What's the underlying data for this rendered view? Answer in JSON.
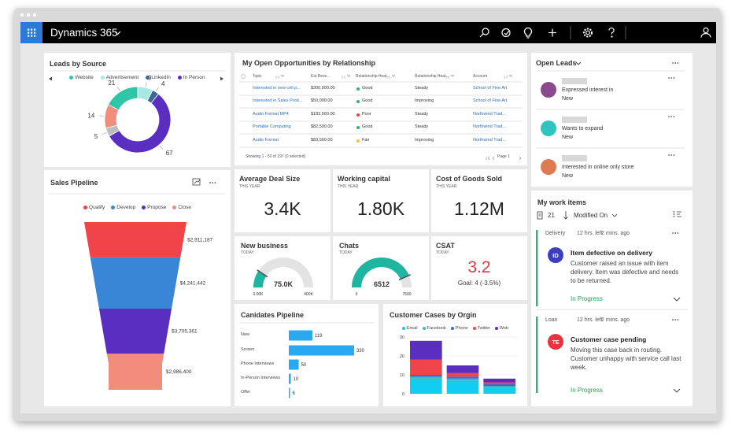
{
  "app": {
    "title": "Dynamics 365"
  },
  "leads_by_source": {
    "type": "donut",
    "title": "Leads by Source",
    "categories": [
      "Website",
      "Advertisement",
      "LinkedIn",
      "In Person",
      null,
      null
    ],
    "values": [
      21,
      9,
      4,
      67,
      5,
      14
    ],
    "colors": [
      "#2fc6a8",
      "#a9e7e1",
      "#3d6690",
      "#5a2ec0",
      "#bdbdbd",
      "#f28c7c"
    ]
  },
  "sales_pipeline": {
    "type": "funnel",
    "title": "Sales Pipeline",
    "categories": [
      "Qualify",
      "Develop",
      "Propose",
      "Close"
    ],
    "values": [
      2911187,
      4241442,
      3705361,
      2986400
    ],
    "value_labels": [
      "$2,911,187",
      "$4,241,442",
      "$3,705,361",
      "$2,986,400"
    ],
    "colors": [
      "#f0434a",
      "#3a86d6",
      "#5a2ec0",
      "#f28c7c"
    ]
  },
  "opportunities": {
    "title": "My Open Opportunities by Relationship",
    "columns": [
      "Topic",
      "Est Reve...",
      "Relationship Heal...",
      "Relationship Heal...",
      "Account"
    ],
    "rows": [
      [
        "Interested in new cell p...",
        "$300,000.00",
        "Good",
        "Steady",
        "School of Fine Art"
      ],
      [
        "Interested in Sales Prod...",
        "$50,000.00",
        "Good",
        "Improving",
        "School of Fine Art"
      ],
      [
        "Audio Format MP4",
        "$183,560.00",
        "Poor",
        "Steady",
        "Northwind Trad..."
      ],
      [
        "Portable Computing",
        "$82,500.00",
        "Good",
        "Steady",
        "Northwind Trad..."
      ],
      [
        "Audio Format",
        "$83,560.00",
        "Fair",
        "Improving",
        "Northwind Trad..."
      ]
    ],
    "health_colors": [
      "#2bb673",
      "#2bb673",
      "#e8434a",
      "#2bb673",
      "#f2c12e"
    ],
    "footer": "Showing 1 - 50 of 197 (0 selected)",
    "page": "Page 1"
  },
  "kpis": [
    {
      "title": "Average Deal Size",
      "period": "THIS YEAR",
      "value": "3.4K"
    },
    {
      "title": "Working capital",
      "period": "THIS YEAR",
      "value": "1.80K"
    },
    {
      "title": "Cost of Goods Sold",
      "period": "THIS YEAR",
      "value": "1.12M"
    }
  ],
  "gauges": [
    {
      "type": "gauge",
      "title": "New business",
      "period": "TODAY",
      "value": 75000,
      "value_label": "75.0K",
      "min": {
        "value": 0,
        "label": "0.00K"
      },
      "max": {
        "value": 400000,
        "label": "400K"
      },
      "color": "#1fb5a0"
    },
    {
      "type": "gauge",
      "title": "Chats",
      "period": "TODAY",
      "value": 6512,
      "min": 0,
      "max": 7500,
      "color": "#1fb5a0"
    }
  ],
  "csat": {
    "title": "CSAT",
    "period": "TODAY",
    "value": "3.2",
    "goal": "Goal: 4 (-3.5%)"
  },
  "candidates": {
    "type": "bar",
    "orientation": "horizontal",
    "title": "Canidates Pipeline",
    "categories": [
      "New",
      "Screen",
      "Phone Interviews",
      "In-Person Interviews",
      "Offer"
    ],
    "values": [
      119,
      330,
      50,
      10,
      6
    ],
    "xlim": [
      0,
      350
    ],
    "color": "#29a9f0"
  },
  "customer_cases": {
    "type": "stacked_bar",
    "title": "Customer Cases by Orgin",
    "categories": [
      null,
      null,
      null
    ],
    "series": [
      {
        "name": "Email",
        "color": "#12cdf2",
        "values": [
          8,
          7,
          3
        ]
      },
      {
        "name": "Facebook",
        "color": "#3fb9b0",
        "values": [
          1,
          1,
          1
        ]
      },
      {
        "name": "Phone",
        "color": "#2f6fd6",
        "values": [
          1,
          1,
          1
        ]
      },
      {
        "name": "Twitter",
        "color": "#f0434a",
        "values": [
          8,
          2,
          1
        ]
      },
      {
        "name": "Web",
        "color": "#5a2ec0",
        "values": [
          10,
          4,
          2
        ]
      }
    ],
    "ylim": [
      0,
      30
    ],
    "yticks": [
      0,
      10,
      20,
      30
    ],
    "grid": true
  },
  "open_leads": {
    "title": "Open Leads",
    "items": [
      {
        "note": "Expressed interest in",
        "status": "New",
        "color": "#8c4a8e"
      },
      {
        "note": "Wants to expand",
        "status": "New",
        "color": "#2fc4c0"
      },
      {
        "note": "Interested in online only store",
        "status": "New",
        "color": "#e07a50"
      }
    ]
  },
  "work_items": {
    "title": "My work items",
    "count": "21",
    "sort": "Modified On",
    "items": [
      {
        "type": "Delivery",
        "due": "12 hrs. left",
        "modified": "2 mins. ago",
        "initials": "ID",
        "initials_color": "#3b3fbf",
        "title": "Item defective on delivery",
        "description": "Customer raised an issue with item delivery. Item was defective and needs to be returned.",
        "status": "In Progress"
      },
      {
        "type": "Loan",
        "due": "12 hrs. left",
        "modified": "2 mins. ago",
        "initials": "TE",
        "initials_color": "#e8343f",
        "title": "Customer case pending",
        "description": "Moving this case back in routing. Customer unhappy with service call last week.",
        "status": "In Progress"
      }
    ]
  }
}
